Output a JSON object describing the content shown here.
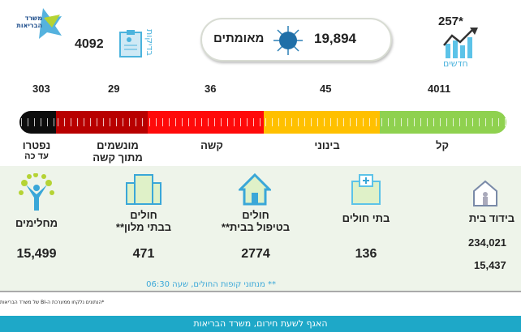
{
  "header": {
    "logo_text": "משרד הבריאות",
    "tests_label": "בדיקות",
    "tests_value": "4092",
    "confirmed_value": "19,894",
    "confirmed_label": "מאומתים",
    "new_value": "257*",
    "new_label": "חדשים"
  },
  "severity": [
    {
      "value": "303",
      "label": "נפטרו",
      "sub": "עד כה",
      "color": "#0d0d0d"
    },
    {
      "value": "29",
      "label": "מונשמים",
      "sub": "מתוך קשה",
      "color": "#b80000"
    },
    {
      "value": "36",
      "label": "קשה",
      "sub": "",
      "color": "#ff0a0a"
    },
    {
      "value": "45",
      "label": "בינוני",
      "sub": "",
      "color": "#ffc000"
    },
    {
      "value": "4011",
      "label": "קל",
      "sub": "",
      "color": "#8fd14f"
    }
  ],
  "locations": [
    {
      "label": "מחלימים",
      "sub": "",
      "value": "15,499"
    },
    {
      "label": "חולים",
      "sub": "בבתי מלון**",
      "value": "471"
    },
    {
      "label": "חולים",
      "sub": "בטיפול בבית**",
      "value": "2774"
    },
    {
      "label": "בתי חולים",
      "sub": "",
      "value": "136"
    },
    {
      "label": "בידוד בית",
      "sub": "",
      "value": "234,021",
      "value2": "15,437"
    }
  ],
  "note": "** מנתוני קופות החולים, שעה 06:30",
  "footnote": "*הנתונים נלקחו ממערכת ה-BI של משרד הבריאות",
  "footer": "האגף לשעת חירום, משרד הבריאות"
}
